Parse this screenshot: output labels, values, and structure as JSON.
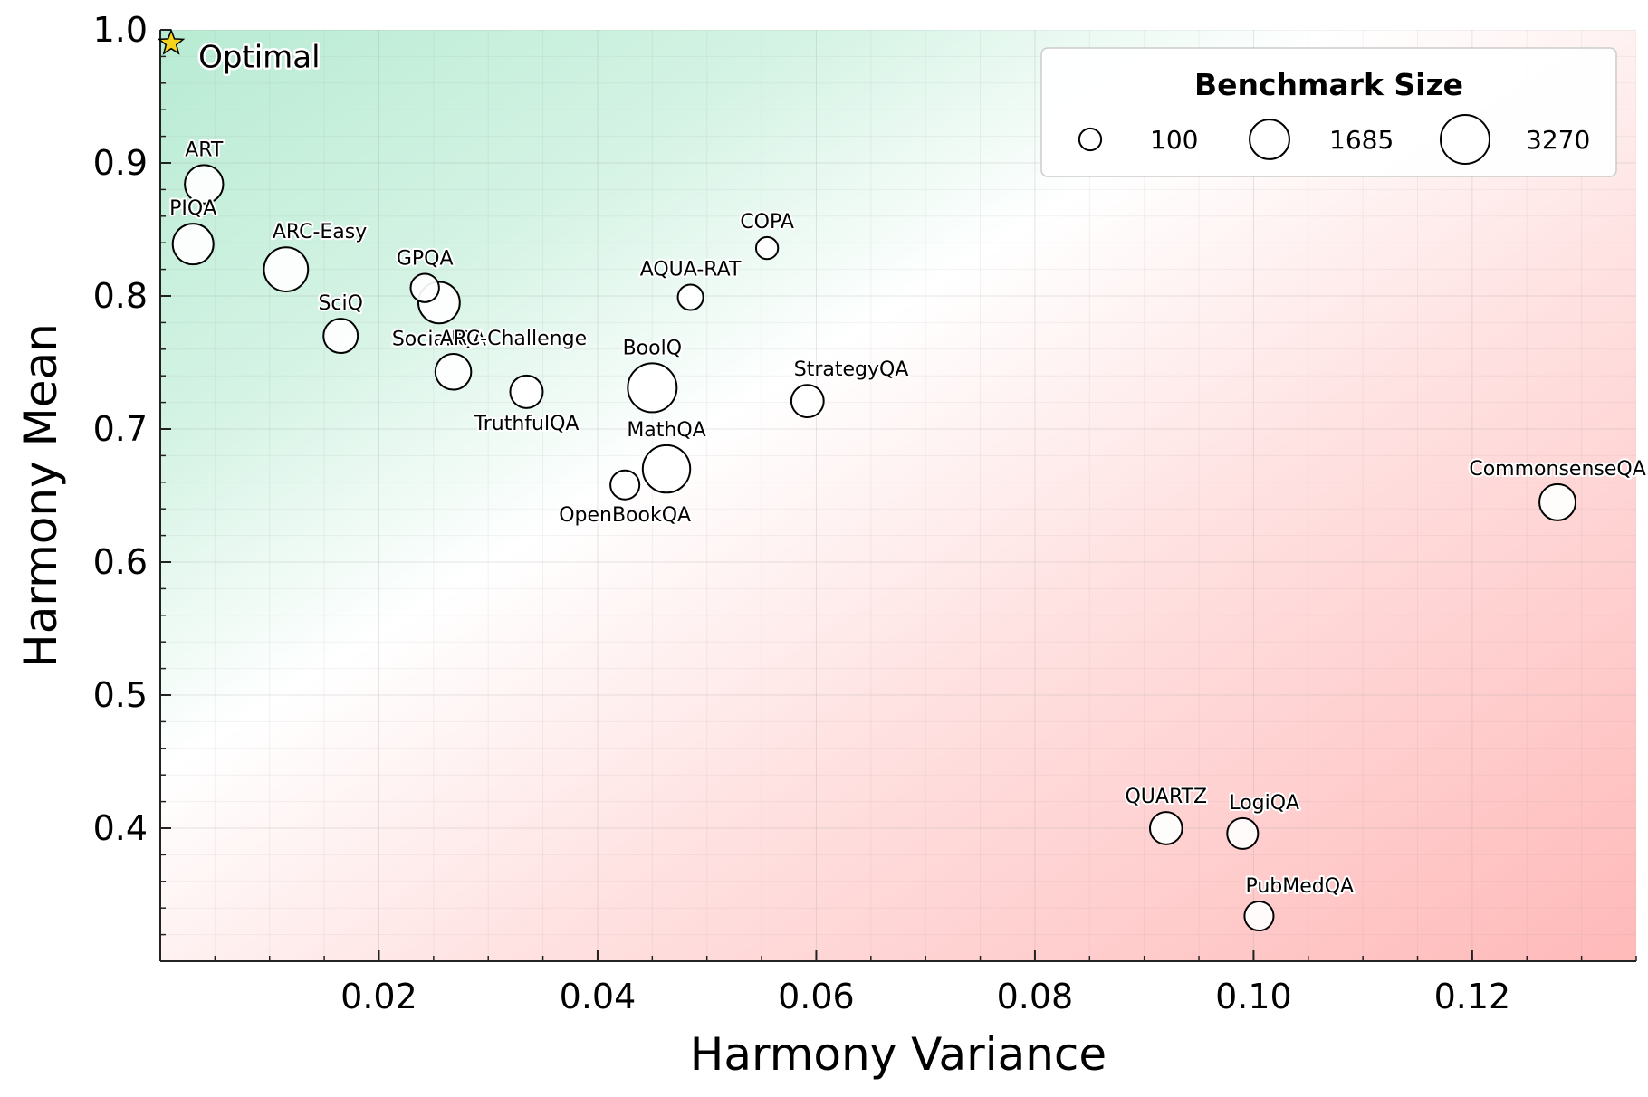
{
  "chart_data": {
    "type": "scatter",
    "title": "",
    "xlabel": "Harmony Variance",
    "ylabel": "Harmony Mean",
    "xlim": [
      0.0,
      0.135
    ],
    "ylim": [
      0.3,
      1.0
    ],
    "xticks": [
      0.02,
      0.04,
      0.06,
      0.08,
      0.1,
      0.12
    ],
    "xtick_labels": [
      "0.02",
      "0.04",
      "0.06",
      "0.08",
      "0.10",
      "0.12"
    ],
    "yticks": [
      0.4,
      0.5,
      0.6,
      0.7,
      0.8,
      0.9,
      1.0
    ],
    "ytick_labels": [
      "0.4",
      "0.5",
      "0.6",
      "0.7",
      "0.8",
      "0.9",
      "1.0"
    ],
    "grid": true,
    "background": "gradient: green (high mean, low variance) to red (low mean, high variance)",
    "colors": {
      "good": "#b8ebd3",
      "bad": "#ffb9b9",
      "marker_fill": "#ffffff",
      "marker_edge": "#000000",
      "optimal_star": "#f5d21c"
    },
    "optimal": {
      "label": "Optimal",
      "x": 0.001,
      "y": 0.99
    },
    "points": [
      {
        "name": "ART",
        "x": 0.004,
        "y": 0.884,
        "size": 1500,
        "label_pos": "above"
      },
      {
        "name": "PIQA",
        "x": 0.003,
        "y": 0.839,
        "size": 1840,
        "label_pos": "above"
      },
      {
        "name": "ARC-Easy",
        "x": 0.0115,
        "y": 0.82,
        "size": 2380,
        "label_pos": "above-right"
      },
      {
        "name": "GPQA",
        "x": 0.0242,
        "y": 0.806,
        "size": 450,
        "label_pos": "above"
      },
      {
        "name": "SocialIQA",
        "x": 0.0255,
        "y": 0.795,
        "size": 1950,
        "label_pos": "below"
      },
      {
        "name": "SciQ",
        "x": 0.0165,
        "y": 0.77,
        "size": 1000,
        "label_pos": "above"
      },
      {
        "name": "ARC-Challenge",
        "x": 0.0268,
        "y": 0.743,
        "size": 1170,
        "label_pos": "above-right"
      },
      {
        "name": "TruthfulQA",
        "x": 0.0335,
        "y": 0.728,
        "size": 817,
        "label_pos": "below"
      },
      {
        "name": "BoolQ",
        "x": 0.045,
        "y": 0.731,
        "size": 3270,
        "label_pos": "above"
      },
      {
        "name": "MathQA",
        "x": 0.0463,
        "y": 0.67,
        "size": 2985,
        "label_pos": "above"
      },
      {
        "name": "OpenBookQA",
        "x": 0.0425,
        "y": 0.658,
        "size": 500,
        "label_pos": "below"
      },
      {
        "name": "COPA",
        "x": 0.0555,
        "y": 0.836,
        "size": 100,
        "label_pos": "above"
      },
      {
        "name": "AQUA-RAT",
        "x": 0.0485,
        "y": 0.799,
        "size": 254,
        "label_pos": "above"
      },
      {
        "name": "StrategyQA",
        "x": 0.0592,
        "y": 0.721,
        "size": 800,
        "label_pos": "above-right"
      },
      {
        "name": "CommonsenseQA",
        "x": 0.1278,
        "y": 0.645,
        "size": 1220,
        "label_pos": "above"
      },
      {
        "name": "QUARTZ",
        "x": 0.092,
        "y": 0.4,
        "size": 784,
        "label_pos": "above"
      },
      {
        "name": "LogiQA",
        "x": 0.099,
        "y": 0.396,
        "size": 651,
        "label_pos": "above-right"
      },
      {
        "name": "PubMedQA",
        "x": 0.1005,
        "y": 0.334,
        "size": 500,
        "label_pos": "above-right"
      }
    ],
    "legend": {
      "title": "Benchmark Size",
      "location": "top-right",
      "entries": [
        {
          "label": "100",
          "size": 100
        },
        {
          "label": "1685",
          "size": 1685
        },
        {
          "label": "3270",
          "size": 3270
        }
      ]
    }
  }
}
